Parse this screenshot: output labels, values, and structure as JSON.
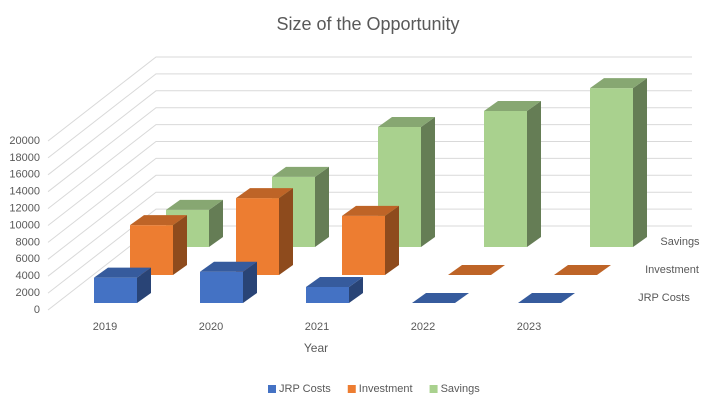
{
  "chart_data": {
    "type": "bar3d",
    "title": "Size of the Opportunity",
    "x_label": "Year",
    "categories": [
      "2019",
      "2020",
      "2021",
      "2022",
      "2023"
    ],
    "series": [
      {
        "name": "JRP Costs",
        "color": "#4472c4",
        "values": [
          3000,
          3700,
          1900,
          0,
          0
        ]
      },
      {
        "name": "Investment",
        "color": "#ed7d31",
        "values": [
          5900,
          9100,
          7000,
          0,
          0
        ]
      },
      {
        "name": "Savings",
        "color": "#a9d18e",
        "values": [
          4400,
          8300,
          14200,
          16100,
          18800
        ]
      }
    ],
    "ylim": [
      0,
      20000
    ],
    "yticks": [
      0,
      2000,
      4000,
      6000,
      8000,
      10000,
      12000,
      14000,
      16000,
      18000,
      20000
    ],
    "grid": true,
    "legend": "bottom"
  }
}
